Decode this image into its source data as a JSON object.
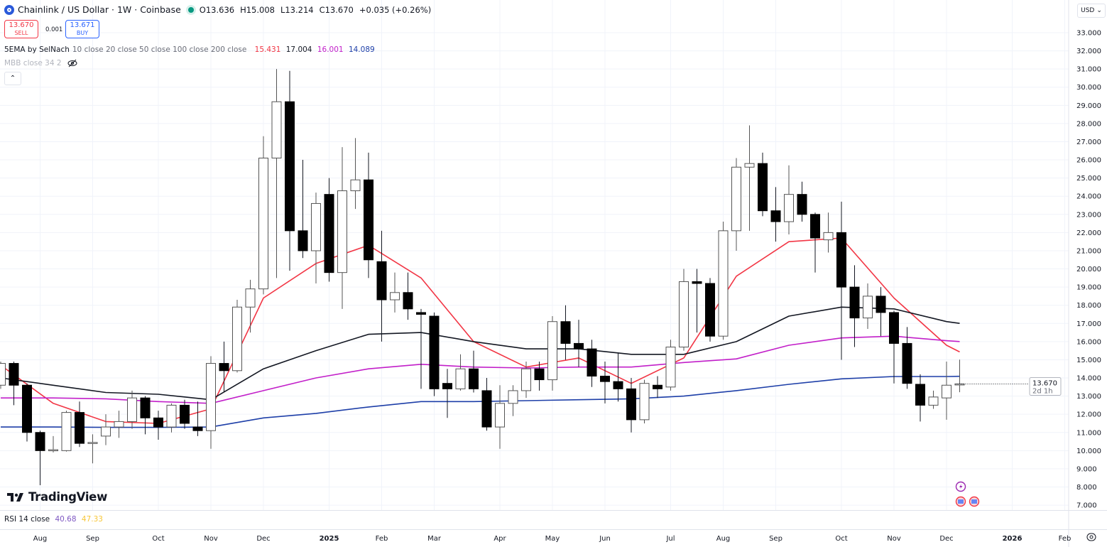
{
  "header": {
    "symbol": "Chainlink / US Dollar · 1W · Coinbase",
    "open": "O13.636",
    "high": "H15.008",
    "low": "L13.214",
    "close": "C13.670",
    "change": "+0.035 (+0.26%)",
    "status_color": "#089981"
  },
  "trade": {
    "sell_price": "13.670",
    "sell_label": "SELL",
    "spread": "0.001",
    "buy_price": "13.671",
    "buy_label": "BUY"
  },
  "indicators": {
    "ema": {
      "name": "5EMA by SelNach",
      "params": "10 close 20 close 50 close 100 close 200 close",
      "values": [
        "15.431",
        "17.004",
        "16.001",
        "14.089"
      ],
      "colors": [
        "#f23645",
        "#131722",
        "#c21fc9",
        "#1e3fa8"
      ]
    },
    "mbb": {
      "name": "MBB close 34 2",
      "icon": "eye-off-icon"
    },
    "rsi": {
      "name": "RSI 14 close",
      "values": [
        "40.68",
        "47.33"
      ],
      "colors": [
        "#7e57c2",
        "#f7c637"
      ]
    }
  },
  "currency": "USD",
  "branding": "TradingView",
  "price_label": {
    "value": "13.670",
    "countdown": "2d 1h"
  },
  "chart_data": {
    "type": "candlestick",
    "interval": "1W",
    "ylim": [
      7,
      33.5
    ],
    "yticks": [
      "7.000",
      "8.000",
      "9.000",
      "10.000",
      "11.000",
      "12.000",
      "13.000",
      "14.000",
      "15.000",
      "16.000",
      "17.000",
      "18.000",
      "19.000",
      "20.000",
      "21.000",
      "22.000",
      "23.000",
      "24.000",
      "25.000",
      "26.000",
      "27.000",
      "28.000",
      "29.000",
      "30.000",
      "31.000",
      "32.000",
      "33.000"
    ],
    "xticks": [
      {
        "label": "Aug",
        "date": "2024-08-05"
      },
      {
        "label": "Sep",
        "date": "2024-09-02"
      },
      {
        "label": "Oct",
        "date": "2024-10-07"
      },
      {
        "label": "Nov",
        "date": "2024-11-04"
      },
      {
        "label": "Dec",
        "date": "2024-12-02"
      },
      {
        "label": "2025",
        "date": "2025-01-06",
        "bold": true
      },
      {
        "label": "Feb",
        "date": "2025-02-03"
      },
      {
        "label": "Mar",
        "date": "2025-03-03"
      },
      {
        "label": "Apr",
        "date": "2025-04-07"
      },
      {
        "label": "May",
        "date": "2025-05-05"
      },
      {
        "label": "Jun",
        "date": "2025-06-02"
      },
      {
        "label": "Jul",
        "date": "2025-07-07"
      },
      {
        "label": "Aug",
        "date": "2025-08-04"
      },
      {
        "label": "Sep",
        "date": "2025-09-01"
      },
      {
        "label": "Oct",
        "date": "2025-10-06"
      },
      {
        "label": "Nov",
        "date": "2025-11-03"
      },
      {
        "label": "Dec",
        "date": "2025-12-01"
      },
      {
        "label": "2026",
        "date": "2026-01-05",
        "bold": true
      },
      {
        "label": "Feb",
        "date": "2026-02-02"
      }
    ],
    "columns": [
      "date",
      "open",
      "high",
      "low",
      "close"
    ],
    "candles": [
      [
        "2024-07-15",
        13.6,
        14.9,
        13.4,
        14.8
      ],
      [
        "2024-07-22",
        14.8,
        14.9,
        12.5,
        13.6
      ],
      [
        "2024-07-29",
        13.6,
        13.7,
        10.5,
        11.0
      ],
      [
        "2024-08-05",
        11.0,
        11.1,
        8.1,
        10.0
      ],
      [
        "2024-08-12",
        10.0,
        10.8,
        9.9,
        10.05
      ],
      [
        "2024-08-19",
        10.0,
        12.2,
        9.95,
        12.1
      ],
      [
        "2024-08-26",
        12.1,
        12.7,
        10.2,
        10.4
      ],
      [
        "2024-09-02",
        10.4,
        10.9,
        9.3,
        10.45
      ],
      [
        "2024-09-09",
        10.8,
        12.0,
        10.3,
        11.3
      ],
      [
        "2024-09-16",
        11.3,
        12.2,
        10.7,
        11.6
      ],
      [
        "2024-09-23",
        11.6,
        13.3,
        11.2,
        12.9
      ],
      [
        "2024-09-30",
        12.9,
        13.0,
        10.9,
        11.8
      ],
      [
        "2024-10-07",
        11.8,
        12.2,
        10.6,
        11.3
      ],
      [
        "2024-10-14",
        11.3,
        12.6,
        11.0,
        12.5
      ],
      [
        "2024-10-21",
        12.5,
        12.8,
        11.2,
        11.5
      ],
      [
        "2024-10-28",
        11.3,
        12.7,
        10.8,
        11.1
      ],
      [
        "2024-11-04",
        11.1,
        15.2,
        10.1,
        14.8
      ],
      [
        "2024-11-11",
        14.8,
        16.0,
        13.2,
        14.4
      ],
      [
        "2024-11-18",
        14.4,
        18.3,
        14.3,
        17.9
      ],
      [
        "2024-11-25",
        17.9,
        19.4,
        16.5,
        18.9
      ],
      [
        "2024-12-02",
        18.9,
        27.3,
        18.6,
        26.1
      ],
      [
        "2024-12-09",
        26.1,
        31.0,
        19.5,
        29.2
      ],
      [
        "2024-12-16",
        29.2,
        30.9,
        19.9,
        22.1
      ],
      [
        "2024-12-23",
        22.1,
        26.0,
        20.6,
        21.0
      ],
      [
        "2024-12-30",
        21.0,
        24.2,
        19.2,
        23.6
      ],
      [
        "2025-01-06",
        24.1,
        25.0,
        19.3,
        19.8
      ],
      [
        "2025-01-13",
        19.8,
        26.7,
        17.8,
        24.3
      ],
      [
        "2025-01-20",
        24.3,
        27.2,
        23.3,
        24.9
      ],
      [
        "2025-01-27",
        24.9,
        26.4,
        19.5,
        20.5
      ],
      [
        "2025-02-03",
        20.4,
        22.1,
        16.0,
        18.3
      ],
      [
        "2025-02-10",
        18.3,
        19.8,
        17.6,
        18.7
      ],
      [
        "2025-02-17",
        18.7,
        19.8,
        17.2,
        17.8
      ],
      [
        "2025-02-24",
        17.6,
        17.8,
        13.4,
        17.5
      ],
      [
        "2025-03-03",
        17.4,
        17.6,
        13.0,
        13.4
      ],
      [
        "2025-03-10",
        13.7,
        14.5,
        11.8,
        13.4
      ],
      [
        "2025-03-17",
        13.4,
        15.3,
        13.3,
        14.5
      ],
      [
        "2025-03-24",
        14.5,
        15.5,
        13.2,
        13.4
      ],
      [
        "2025-03-31",
        13.3,
        14.0,
        11.1,
        11.3
      ],
      [
        "2025-04-07",
        11.3,
        13.6,
        10.1,
        12.6
      ],
      [
        "2025-04-14",
        12.6,
        13.6,
        11.9,
        13.3
      ],
      [
        "2025-04-21",
        13.3,
        14.9,
        12.9,
        14.5
      ],
      [
        "2025-04-28",
        14.5,
        14.9,
        13.3,
        13.9
      ],
      [
        "2025-05-05",
        13.9,
        17.4,
        13.3,
        17.1
      ],
      [
        "2025-05-12",
        17.1,
        18.0,
        15.0,
        15.9
      ],
      [
        "2025-05-19",
        15.9,
        17.2,
        14.6,
        15.6
      ],
      [
        "2025-05-26",
        15.6,
        16.1,
        13.5,
        14.1
      ],
      [
        "2025-06-02",
        14.1,
        14.9,
        12.6,
        13.8
      ],
      [
        "2025-06-09",
        13.8,
        15.4,
        12.7,
        13.4
      ],
      [
        "2025-06-16",
        13.4,
        14.0,
        11.0,
        11.7
      ],
      [
        "2025-06-23",
        11.7,
        13.9,
        11.5,
        13.7
      ],
      [
        "2025-06-30",
        13.6,
        14.1,
        12.9,
        13.4
      ],
      [
        "2025-07-07",
        13.5,
        16.1,
        13.3,
        15.7
      ],
      [
        "2025-07-14",
        15.7,
        20.0,
        15.5,
        19.3
      ],
      [
        "2025-07-21",
        19.3,
        20.0,
        16.5,
        19.2
      ],
      [
        "2025-07-28",
        19.2,
        19.5,
        16.0,
        16.3
      ],
      [
        "2025-08-04",
        16.3,
        22.6,
        16.1,
        22.1
      ],
      [
        "2025-08-11",
        22.1,
        26.1,
        21.0,
        25.6
      ],
      [
        "2025-08-18",
        25.6,
        27.9,
        22.1,
        25.8
      ],
      [
        "2025-08-25",
        25.8,
        26.4,
        22.9,
        23.2
      ],
      [
        "2025-09-01",
        23.2,
        24.5,
        21.5,
        22.6
      ],
      [
        "2025-09-08",
        22.6,
        25.7,
        21.9,
        24.1
      ],
      [
        "2025-09-15",
        24.1,
        24.8,
        22.6,
        23.0
      ],
      [
        "2025-09-22",
        23.0,
        23.1,
        19.8,
        21.7
      ],
      [
        "2025-09-29",
        21.6,
        23.1,
        20.9,
        22.0
      ],
      [
        "2025-10-06",
        22.0,
        23.7,
        15.0,
        19.0
      ],
      [
        "2025-10-13",
        19.0,
        20.2,
        15.7,
        17.3
      ],
      [
        "2025-10-20",
        17.3,
        19.2,
        16.7,
        18.5
      ],
      [
        "2025-10-27",
        18.5,
        19.0,
        16.3,
        17.6
      ],
      [
        "2025-11-03",
        17.6,
        17.7,
        13.7,
        15.9
      ],
      [
        "2025-11-10",
        15.9,
        16.8,
        13.4,
        13.7
      ],
      [
        "2025-11-17",
        13.65,
        14.2,
        11.6,
        12.5
      ],
      [
        "2025-11-24",
        12.5,
        13.3,
        12.3,
        12.95
      ],
      [
        "2025-12-01",
        12.9,
        14.9,
        11.7,
        13.6
      ],
      [
        "2025-12-08",
        13.636,
        15.008,
        13.214,
        13.67
      ]
    ],
    "ema_x": [
      "2024-07-15",
      "2024-08-12",
      "2024-09-09",
      "2024-10-07",
      "2024-11-04",
      "2024-12-02",
      "2024-12-30",
      "2025-01-27",
      "2025-02-24",
      "2025-03-24",
      "2025-04-21",
      "2025-05-19",
      "2025-06-16",
      "2025-07-14",
      "2025-08-11",
      "2025-09-08",
      "2025-10-06",
      "2025-11-03",
      "2025-12-01",
      "2025-12-08"
    ],
    "series": [
      {
        "name": "EMA 10",
        "color": "#f23645",
        "values": [
          14.7,
          12.6,
          11.6,
          11.5,
          12.3,
          18.4,
          20.3,
          21.3,
          19.5,
          16.0,
          14.6,
          15.1,
          13.7,
          15.1,
          19.6,
          21.5,
          21.7,
          18.4,
          15.8,
          15.431
        ]
      },
      {
        "name": "EMA 20",
        "color": "#131722",
        "values": [
          14.0,
          13.6,
          13.2,
          13.1,
          12.8,
          14.5,
          15.5,
          16.4,
          16.5,
          16.0,
          15.6,
          15.6,
          15.3,
          15.3,
          16.0,
          17.4,
          17.9,
          17.8,
          17.1,
          17.004
        ]
      },
      {
        "name": "EMA 50",
        "color": "#c21fc9",
        "values": [
          12.9,
          12.9,
          12.85,
          12.7,
          12.6,
          13.3,
          14.0,
          14.5,
          14.75,
          14.6,
          14.55,
          14.6,
          14.6,
          14.85,
          15.05,
          15.8,
          16.2,
          16.3,
          16.05,
          16.001
        ]
      },
      {
        "name": "EMA 100",
        "color": "#1e3fa8",
        "values": [
          11.3,
          11.3,
          11.28,
          11.28,
          11.3,
          11.8,
          12.05,
          12.4,
          12.7,
          12.7,
          12.75,
          12.8,
          12.85,
          13.0,
          13.3,
          13.65,
          13.95,
          14.08,
          14.08,
          14.089
        ]
      }
    ],
    "grid": true
  }
}
